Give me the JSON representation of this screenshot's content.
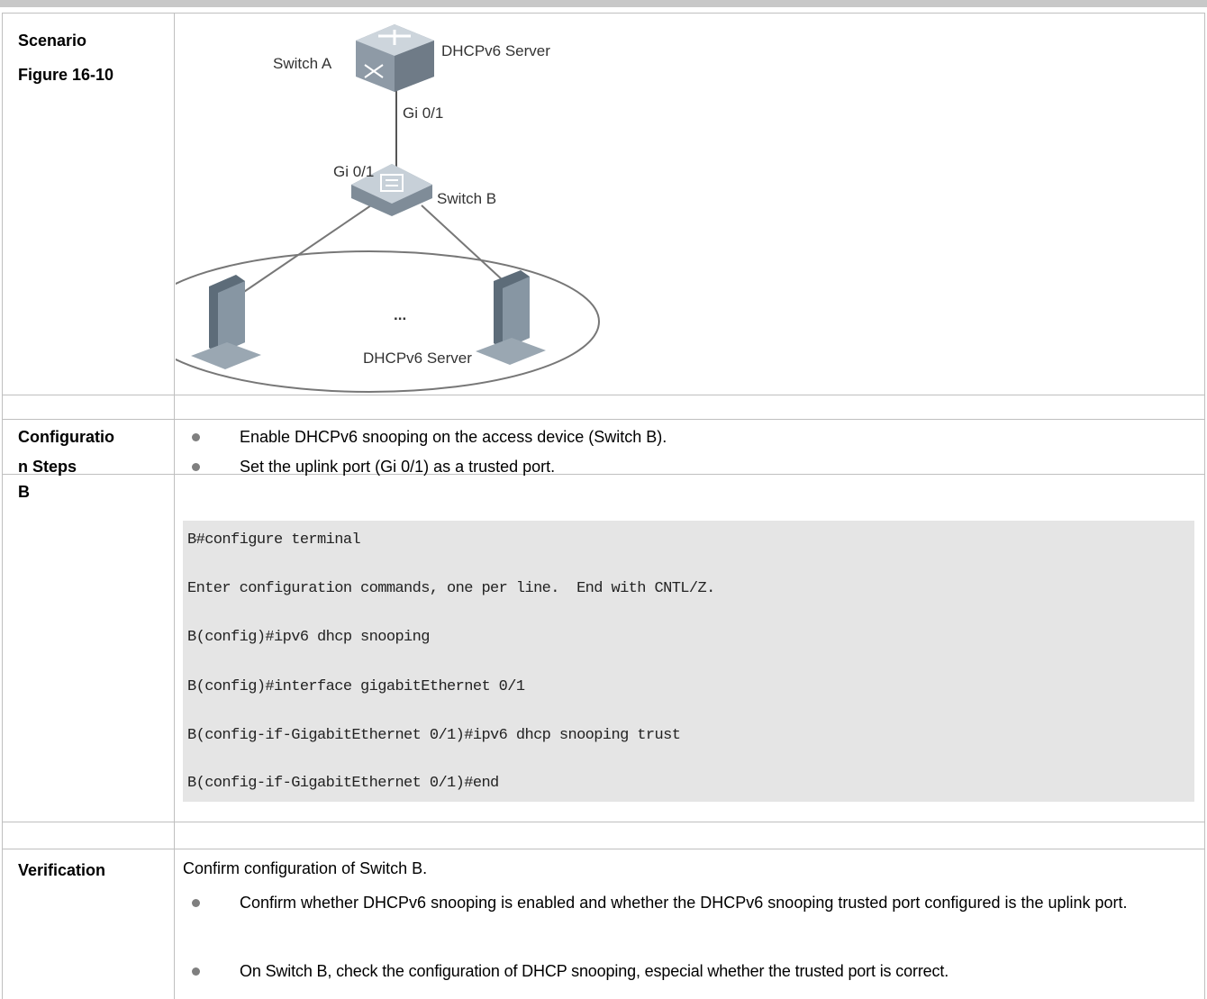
{
  "scenario": {
    "label_lines": [
      "Scenario",
      "Figure 16-10"
    ],
    "figure": {
      "switch_a": "Switch A",
      "server": "DHCPv6 Server",
      "port_a": "Gi 0/1",
      "port_b": "Gi 0/1",
      "switch_b": "Switch B",
      "ellipsis": "...",
      "clients": "DHCPv6 Server"
    }
  },
  "configuration": {
    "label_lines": [
      "Configuratio",
      "n Steps"
    ],
    "bullets": [
      "Enable DHCPv6 snooping on the access device (Switch B).",
      "Set the uplink port (Gi 0/1) as a trusted port."
    ]
  },
  "device": {
    "label": "B",
    "code": [
      "B#configure terminal",
      "Enter configuration commands, one per line.  End with CNTL/Z.",
      "B(config)#ipv6 dhcp snooping",
      "B(config)#interface gigabitEthernet 0/1",
      "B(config-if-GigabitEthernet 0/1)#ipv6 dhcp snooping trust",
      "B(config-if-GigabitEthernet 0/1)#end"
    ]
  },
  "verification": {
    "label": "Verification",
    "intro": "Confirm configuration of Switch B.",
    "bullets": [
      "Confirm whether DHCPv6 snooping is enabled and whether the DHCPv6 snooping trusted port configured is the uplink port.",
      "On Switch B, check the configuration of DHCP snooping, especial whether the trusted port is correct."
    ]
  }
}
